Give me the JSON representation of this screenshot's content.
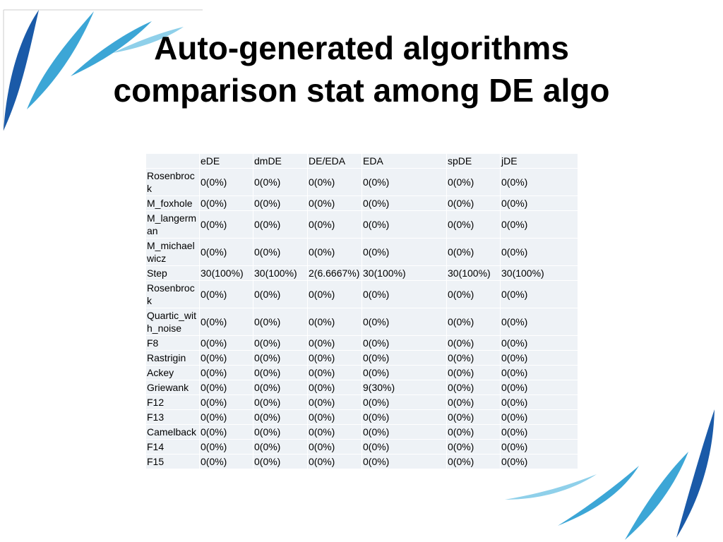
{
  "header": {
    "title": "Auto-generated algorithms comparison stat among DE algo"
  },
  "table": {
    "columns": [
      "",
      "eDE",
      "dmDE",
      "DE/EDA",
      "EDA",
      "spDE",
      "jDE"
    ],
    "rows": [
      [
        "Rosenbrock",
        "0(0%)",
        "0(0%)",
        "0(0%)",
        "0(0%)",
        "0(0%)",
        "0(0%)"
      ],
      [
        "M_foxhole",
        "0(0%)",
        "0(0%)",
        "0(0%)",
        "0(0%)",
        "0(0%)",
        "0(0%)"
      ],
      [
        "M_langerman",
        "0(0%)",
        "0(0%)",
        "0(0%)",
        "0(0%)",
        "0(0%)",
        "0(0%)"
      ],
      [
        "M_michaelwicz",
        "0(0%)",
        "0(0%)",
        "0(0%)",
        "0(0%)",
        "0(0%)",
        "0(0%)"
      ],
      [
        "Step",
        "30(100%)",
        "30(100%)",
        "2(6.6667%)",
        "30(100%)",
        "30(100%)",
        "30(100%)"
      ],
      [
        "Rosenbrock",
        "0(0%)",
        "0(0%)",
        "0(0%)",
        "0(0%)",
        "0(0%)",
        "0(0%)"
      ],
      [
        "Quartic_with_noise",
        "0(0%)",
        "0(0%)",
        "0(0%)",
        "0(0%)",
        "0(0%)",
        "0(0%)"
      ],
      [
        "F8",
        "0(0%)",
        "0(0%)",
        "0(0%)",
        "0(0%)",
        "0(0%)",
        "0(0%)"
      ],
      [
        "Rastrigin",
        "0(0%)",
        "0(0%)",
        "0(0%)",
        "0(0%)",
        "0(0%)",
        "0(0%)"
      ],
      [
        "Ackey",
        "0(0%)",
        "0(0%)",
        "0(0%)",
        "0(0%)",
        "0(0%)",
        "0(0%)"
      ],
      [
        "Griewank",
        "0(0%)",
        "0(0%)",
        "0(0%)",
        "9(30%)",
        "0(0%)",
        "0(0%)"
      ],
      [
        "F12",
        "0(0%)",
        "0(0%)",
        "0(0%)",
        "0(0%)",
        "0(0%)",
        "0(0%)"
      ],
      [
        "F13",
        "0(0%)",
        "0(0%)",
        "0(0%)",
        "0(0%)",
        "0(0%)",
        "0(0%)"
      ],
      [
        "Camelback",
        "0(0%)",
        "0(0%)",
        "0(0%)",
        "0(0%)",
        "0(0%)",
        "0(0%)"
      ],
      [
        "F14",
        "0(0%)",
        "0(0%)",
        "0(0%)",
        "0(0%)",
        "0(0%)",
        "0(0%)"
      ],
      [
        "F15",
        "0(0%)",
        "0(0%)",
        "0(0%)",
        "0(0%)",
        "0(0%)",
        "0(0%)"
      ]
    ]
  }
}
